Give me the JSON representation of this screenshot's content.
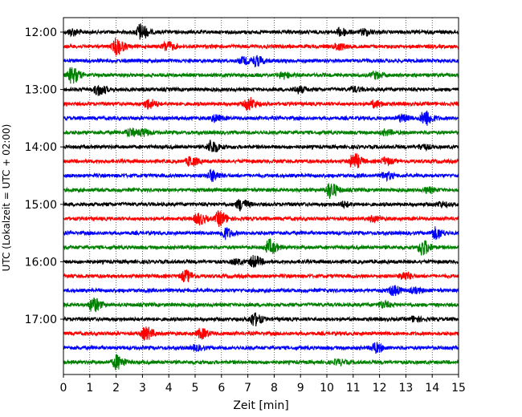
{
  "chart_data": {
    "type": "line",
    "title": "",
    "xlabel": "Zeit  [min]",
    "ylabel": "UTC (Lokalzeit = UTC + 02:00)",
    "xlim": [
      0,
      15
    ],
    "x_ticks": [
      0,
      1,
      2,
      3,
      4,
      5,
      6,
      7,
      8,
      9,
      10,
      11,
      12,
      13,
      14,
      15
    ],
    "y_tick_labels": [
      "12:00",
      "13:00",
      "14:00",
      "15:00",
      "16:00",
      "17:00"
    ],
    "grid": "vertical dotted",
    "legend": "none",
    "trace_colors": [
      "#000000",
      "#ff0000",
      "#0000ff",
      "#008000"
    ],
    "series": [
      {
        "start": "12:00",
        "color": "#000000",
        "events": [
          [
            2.9,
            1.0
          ],
          [
            0.3,
            0.4
          ],
          [
            10.5,
            0.5
          ],
          [
            11.4,
            0.4
          ]
        ]
      },
      {
        "start": "12:15",
        "color": "#ff0000",
        "events": [
          [
            2.0,
            1.0
          ],
          [
            3.9,
            0.6
          ],
          [
            10.4,
            0.4
          ]
        ]
      },
      {
        "start": "12:30",
        "color": "#0000ff",
        "events": [
          [
            7.3,
            0.6
          ],
          [
            6.8,
            0.4
          ]
        ]
      },
      {
        "start": "12:45",
        "color": "#008000",
        "events": [
          [
            0.3,
            1.0
          ],
          [
            8.3,
            0.4
          ],
          [
            11.8,
            0.4
          ]
        ]
      },
      {
        "start": "13:00",
        "color": "#000000",
        "events": [
          [
            1.3,
            0.7
          ],
          [
            8.9,
            0.4
          ],
          [
            11.0,
            0.3
          ]
        ]
      },
      {
        "start": "13:15",
        "color": "#ff0000",
        "events": [
          [
            3.2,
            0.6
          ],
          [
            7.0,
            0.8
          ],
          [
            11.8,
            0.4
          ]
        ]
      },
      {
        "start": "13:30",
        "color": "#0000ff",
        "events": [
          [
            13.7,
            1.0
          ],
          [
            12.8,
            0.4
          ],
          [
            5.7,
            0.4
          ]
        ]
      },
      {
        "start": "13:45",
        "color": "#008000",
        "events": [
          [
            2.5,
            0.5
          ],
          [
            3.0,
            0.4
          ],
          [
            12.2,
            0.3
          ]
        ]
      },
      {
        "start": "14:00",
        "color": "#000000",
        "events": [
          [
            5.6,
            0.8
          ],
          [
            13.6,
            0.3
          ]
        ]
      },
      {
        "start": "14:15",
        "color": "#ff0000",
        "events": [
          [
            4.8,
            0.6
          ],
          [
            11.0,
            1.0
          ],
          [
            12.2,
            0.4
          ]
        ]
      },
      {
        "start": "14:30",
        "color": "#0000ff",
        "events": [
          [
            5.6,
            0.7
          ],
          [
            12.2,
            0.5
          ]
        ]
      },
      {
        "start": "14:45",
        "color": "#008000",
        "events": [
          [
            10.1,
            1.0
          ],
          [
            13.8,
            0.3
          ]
        ]
      },
      {
        "start": "15:00",
        "color": "#000000",
        "events": [
          [
            6.7,
            0.7
          ],
          [
            10.6,
            0.3
          ],
          [
            14.3,
            0.3
          ]
        ]
      },
      {
        "start": "15:15",
        "color": "#ff0000",
        "events": [
          [
            5.1,
            0.7
          ],
          [
            5.9,
            0.9
          ],
          [
            11.7,
            0.3
          ]
        ]
      },
      {
        "start": "15:30",
        "color": "#0000ff",
        "events": [
          [
            6.1,
            0.7
          ],
          [
            14.1,
            0.7
          ]
        ]
      },
      {
        "start": "15:45",
        "color": "#008000",
        "events": [
          [
            7.8,
            0.9
          ],
          [
            13.6,
            1.0
          ]
        ]
      },
      {
        "start": "16:00",
        "color": "#000000",
        "events": [
          [
            7.2,
            0.7
          ],
          [
            6.5,
            0.3
          ]
        ]
      },
      {
        "start": "16:15",
        "color": "#ff0000",
        "events": [
          [
            4.6,
            0.7
          ],
          [
            12.9,
            0.5
          ]
        ]
      },
      {
        "start": "16:30",
        "color": "#0000ff",
        "events": [
          [
            12.5,
            0.6
          ],
          [
            13.3,
            0.3
          ]
        ]
      },
      {
        "start": "16:45",
        "color": "#008000",
        "events": [
          [
            1.1,
            0.9
          ],
          [
            12.1,
            0.4
          ]
        ]
      },
      {
        "start": "17:00",
        "color": "#000000",
        "events": [
          [
            7.2,
            0.8
          ],
          [
            13.3,
            0.3
          ]
        ]
      },
      {
        "start": "17:15",
        "color": "#ff0000",
        "events": [
          [
            3.1,
            0.8
          ],
          [
            5.2,
            0.6
          ]
        ]
      },
      {
        "start": "17:30",
        "color": "#0000ff",
        "events": [
          [
            11.8,
            0.6
          ],
          [
            5.0,
            0.3
          ]
        ]
      },
      {
        "start": "17:45",
        "color": "#008000",
        "events": [
          [
            2.0,
            0.9
          ],
          [
            10.4,
            0.3
          ]
        ]
      }
    ]
  }
}
